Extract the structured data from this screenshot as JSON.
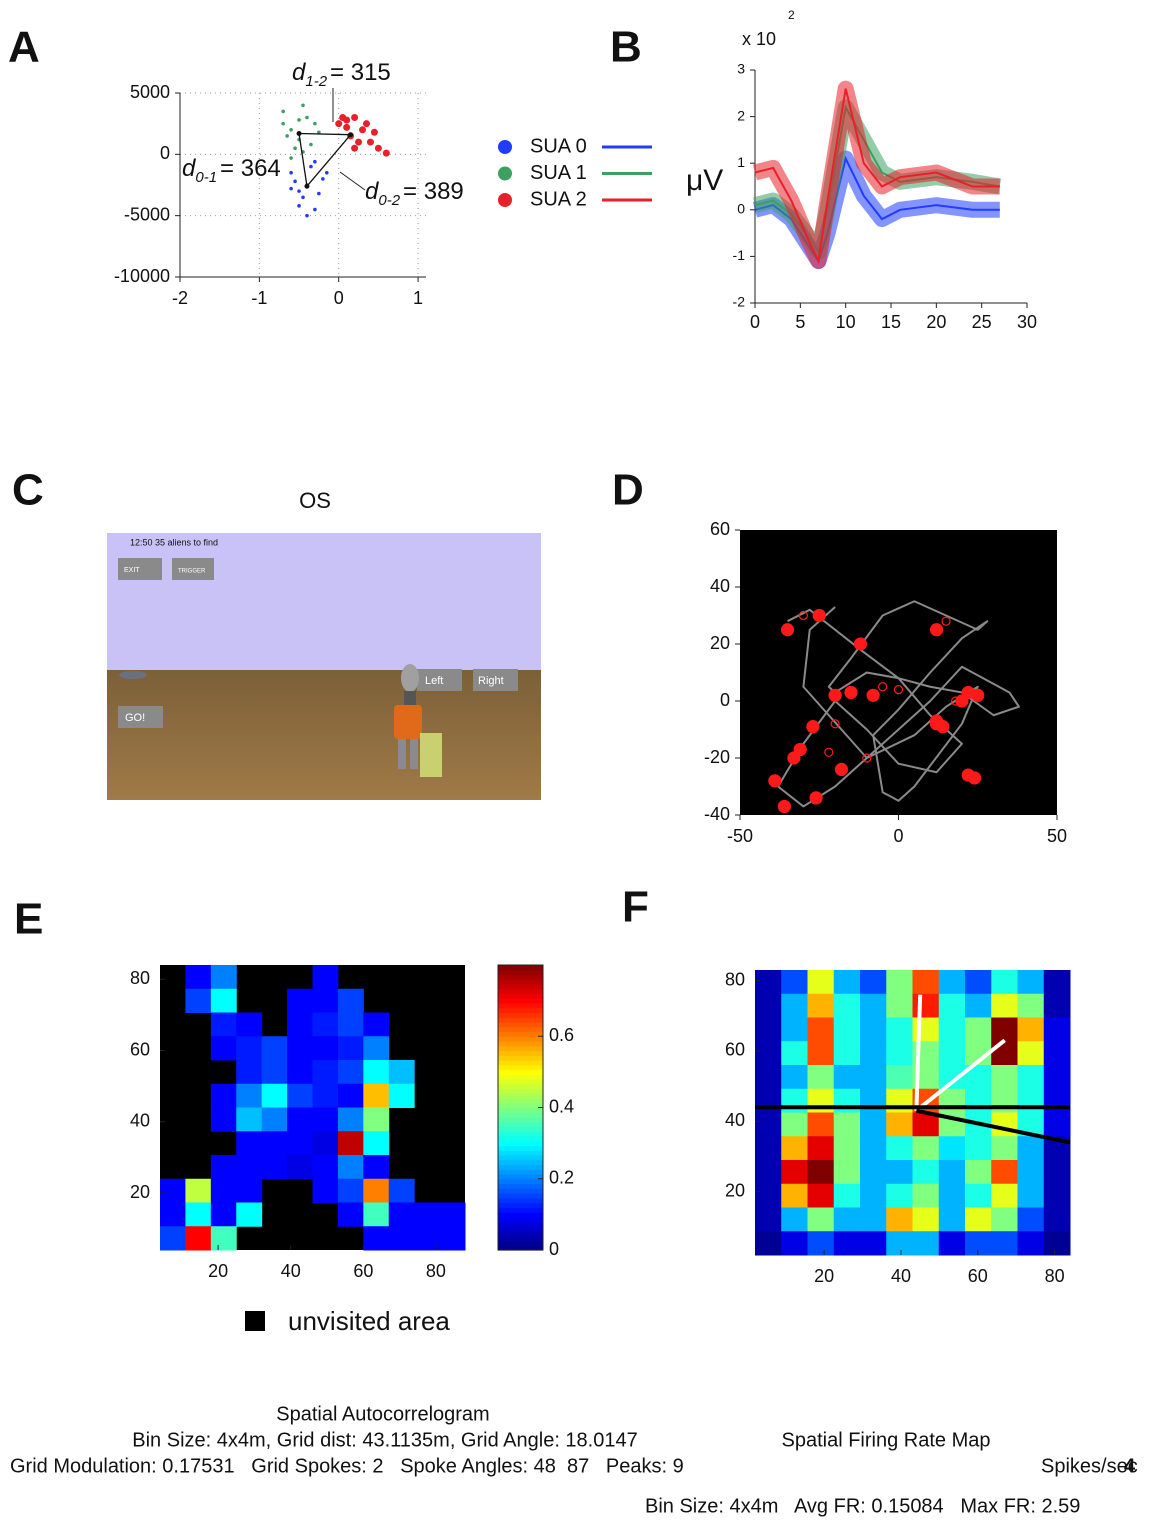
{
  "chart_data": [
    {
      "type": "scatter",
      "panel_label": "A",
      "xlim": [
        -2,
        1.1
      ],
      "ylim": [
        -10000,
        5000
      ],
      "xticks": [
        -2,
        -1,
        0,
        1
      ],
      "yticks": [
        -10000,
        -5000,
        0,
        5000
      ],
      "grid": true,
      "series": [
        {
          "name": "SUA 0",
          "color": "#1f3cff",
          "marker_size": 1.8,
          "centroid": [
            -0.4,
            -2600
          ],
          "x": [
            -0.6,
            -0.5,
            -0.4,
            -0.3,
            -0.2,
            -0.45,
            -0.35,
            -0.55,
            -0.25,
            -0.4,
            -0.5,
            -0.3,
            -0.6,
            -0.15
          ],
          "y": [
            -1500,
            -3000,
            -2500,
            -4500,
            -2000,
            -3500,
            -1000,
            -2200,
            -3200,
            -5000,
            -4200,
            -600,
            -2800,
            -1500
          ]
        },
        {
          "name": "SUA 1",
          "color": "#3ca060",
          "marker_size": 1.8,
          "centroid": [
            -0.5,
            1700
          ],
          "x": [
            -0.7,
            -0.6,
            -0.5,
            -0.45,
            -0.3,
            -0.55,
            -0.4,
            -0.65,
            -0.35,
            -0.5,
            -0.25,
            -0.6,
            -0.45,
            -0.7
          ],
          "y": [
            3500,
            2000,
            1200,
            4000,
            2500,
            500,
            3000,
            1500,
            800,
            2800,
            1800,
            -300,
            200,
            2500
          ]
        },
        {
          "name": "SUA 2",
          "color": "#e8202a",
          "marker_size": 3.5,
          "centroid": [
            0.15,
            1600
          ],
          "x": [
            0.0,
            0.1,
            0.2,
            0.3,
            0.15,
            0.25,
            0.35,
            0.05,
            0.45,
            0.5,
            0.2,
            0.1,
            0.4,
            0.6
          ],
          "y": [
            2500,
            2800,
            3000,
            2000,
            1500,
            1000,
            2500,
            3000,
            1800,
            500,
            500,
            2200,
            1000,
            100
          ]
        }
      ],
      "annotations": [
        {
          "symbol": "d",
          "subscript": "1-2",
          "label": "= 315"
        },
        {
          "symbol": "d",
          "subscript": "0-1",
          "label": "= 364"
        },
        {
          "symbol": "d",
          "subscript": "0-2",
          "label": "= 389"
        }
      ]
    },
    {
      "type": "line",
      "panel_label": "B",
      "exponent_label": "x 10",
      "exponent": "2",
      "y_label": "μV",
      "xlim": [
        0,
        30
      ],
      "ylim": [
        -2,
        3
      ],
      "xticks": [
        0,
        5,
        10,
        15,
        20,
        25,
        30
      ],
      "yticks": [
        -2,
        -1,
        0,
        1,
        2,
        3
      ],
      "x": [
        0,
        2,
        4,
        6,
        7,
        8,
        10,
        12,
        14,
        16,
        20,
        24,
        27
      ],
      "series": [
        {
          "color": "#1f3cff",
          "values": [
            0.0,
            0.1,
            -0.2,
            -0.8,
            -1.1,
            -0.5,
            1.1,
            0.3,
            -0.2,
            0.0,
            0.1,
            0.0,
            0.0
          ]
        },
        {
          "color": "#3ca060",
          "values": [
            0.1,
            0.2,
            -0.1,
            -0.6,
            -0.9,
            0.0,
            2.2,
            1.5,
            0.8,
            0.6,
            0.7,
            0.6,
            0.5
          ]
        },
        {
          "color": "#e8202a",
          "values": [
            0.8,
            0.9,
            0.2,
            -0.7,
            -1.1,
            0.2,
            2.6,
            1.0,
            0.5,
            0.7,
            0.8,
            0.5,
            0.5
          ]
        }
      ]
    },
    {
      "type": "trajectory",
      "panel_label": "D",
      "xlim": [
        -50,
        50
      ],
      "ylim": [
        -40,
        60
      ],
      "xticks": [
        -50,
        0,
        50
      ],
      "yticks": [
        -40,
        -20,
        0,
        20,
        40,
        60
      ],
      "background": "#000000",
      "path": {
        "color": "#8a8a8a",
        "x": [
          -35,
          -28,
          -20,
          -12,
          0,
          10,
          20,
          12,
          0,
          -10,
          -20,
          -30,
          -38,
          -30,
          -20,
          -10,
          0,
          10,
          20,
          35,
          38,
          30,
          20,
          10,
          0,
          -10,
          -20,
          -22,
          -15,
          -5,
          5,
          15,
          25,
          28,
          20,
          10,
          0,
          -8,
          -5,
          0,
          5,
          20,
          25,
          15,
          5,
          -10,
          -22,
          -30,
          -28,
          -20
        ],
        "y": [
          28,
          32,
          25,
          18,
          8,
          -5,
          -15,
          -25,
          -22,
          -10,
          0,
          -15,
          -30,
          -37,
          -30,
          -20,
          -10,
          0,
          12,
          3,
          -2,
          -5,
          3,
          5,
          8,
          10,
          3,
          5,
          15,
          30,
          35,
          30,
          25,
          28,
          22,
          10,
          -3,
          -12,
          -32,
          -35,
          -30,
          -8,
          5,
          -2,
          -12,
          -20,
          -5,
          5,
          25,
          33
        ]
      },
      "spikes": [
        {
          "color": "#ff1a1a",
          "filled": true,
          "x": [
            -35,
            -25,
            -12,
            -31,
            -33,
            -36,
            -39,
            -26,
            -18,
            -20,
            -15,
            -8,
            12,
            12,
            20,
            22,
            25,
            12,
            14,
            22,
            24,
            -27
          ],
          "y": [
            25,
            30,
            20,
            -17,
            -20,
            -37,
            -28,
            -34,
            -24,
            2,
            3,
            2,
            25,
            -7,
            0,
            3,
            2,
            -8,
            -9,
            -26,
            -27,
            -9
          ]
        },
        {
          "color": "#ff1a1a",
          "filled": false,
          "x": [
            -30,
            -5,
            15,
            -20,
            0,
            -10,
            18,
            -22
          ],
          "y": [
            30,
            5,
            28,
            -8,
            4,
            -20,
            0,
            -18
          ]
        }
      ]
    },
    {
      "type": "heatmap",
      "panel_label": "E",
      "colormap": "jet",
      "missing_color": "#000000",
      "missing_label": "unvisited area",
      "xlim": [
        4,
        88
      ],
      "ylim": [
        4,
        84
      ],
      "xticks": [
        20,
        40,
        60,
        80
      ],
      "yticks": [
        20,
        40,
        60,
        80
      ],
      "clim": [
        0,
        0.8
      ],
      "colorbar_ticks": [
        0,
        0.2,
        0.4,
        0.6
      ],
      "values": [
        [
          null,
          0.1,
          0.2,
          null,
          null,
          null,
          0.1,
          null,
          null,
          null,
          null,
          null
        ],
        [
          null,
          0.15,
          0.3,
          null,
          null,
          0.1,
          0.1,
          0.15,
          null,
          null,
          null,
          null
        ],
        [
          null,
          null,
          0.12,
          0.1,
          null,
          0.1,
          0.12,
          0.15,
          0.1,
          null,
          null,
          null
        ],
        [
          null,
          null,
          0.1,
          0.12,
          0.15,
          0.1,
          0.1,
          0.12,
          0.2,
          null,
          null,
          null
        ],
        [
          null,
          null,
          null,
          0.12,
          0.15,
          0.1,
          0.12,
          0.15,
          0.3,
          0.25,
          null,
          null
        ],
        [
          null,
          null,
          0.1,
          0.2,
          0.3,
          0.15,
          0.12,
          0.1,
          0.55,
          0.3,
          null,
          null
        ],
        [
          null,
          null,
          0.1,
          0.25,
          0.2,
          0.1,
          0.1,
          0.2,
          0.4,
          null,
          null,
          null
        ],
        [
          null,
          null,
          null,
          0.1,
          0.1,
          0.1,
          0.08,
          0.75,
          0.3,
          null,
          null,
          null
        ],
        [
          null,
          null,
          0.1,
          0.1,
          0.1,
          0.08,
          0.1,
          0.2,
          0.1,
          null,
          null,
          null
        ],
        [
          0.1,
          0.45,
          0.1,
          0.1,
          null,
          null,
          0.1,
          0.15,
          0.6,
          0.15,
          null,
          null
        ],
        [
          0.1,
          0.3,
          0.1,
          0.3,
          null,
          null,
          null,
          0.1,
          0.35,
          0.1,
          0.1,
          0.1
        ],
        [
          0.15,
          0.7,
          0.35,
          null,
          null,
          null,
          null,
          null,
          0.1,
          0.1,
          0.1,
          0.1
        ]
      ]
    },
    {
      "type": "heatmap",
      "panel_label": "F",
      "colormap": "jet",
      "xlim": [
        2,
        84
      ],
      "ylim": [
        2,
        83
      ],
      "xticks": [
        20,
        40,
        60,
        80
      ],
      "yticks": [
        20,
        40,
        60,
        80
      ],
      "clim": [
        0,
        1
      ],
      "values": [
        [
          0.05,
          0.2,
          0.6,
          0.3,
          0.2,
          0.5,
          0.8,
          0.3,
          0.2,
          0.4,
          0.3,
          0.05
        ],
        [
          0.05,
          0.3,
          0.7,
          0.4,
          0.3,
          0.5,
          0.85,
          0.4,
          0.3,
          0.6,
          0.5,
          0.05
        ],
        [
          0.05,
          0.3,
          0.8,
          0.4,
          0.3,
          0.4,
          0.6,
          0.4,
          0.5,
          1,
          0.7,
          0.1
        ],
        [
          0.05,
          0.4,
          0.8,
          0.4,
          0.3,
          0.4,
          0.5,
          0.4,
          0.5,
          1,
          0.6,
          0.1
        ],
        [
          0.05,
          0.3,
          0.5,
          0.3,
          0.3,
          0.45,
          0.5,
          0.4,
          0.4,
          0.5,
          0.4,
          0.1
        ],
        [
          0.05,
          0.4,
          0.6,
          0.4,
          0.3,
          0.6,
          0.8,
          0.5,
          0.4,
          0.5,
          0.4,
          0.1
        ],
        [
          0.05,
          0.5,
          0.8,
          0.5,
          0.3,
          0.7,
          0.9,
          0.5,
          0.4,
          0.6,
          0.4,
          0.1
        ],
        [
          0.05,
          0.7,
          0.9,
          0.5,
          0.3,
          0.4,
          0.5,
          0.35,
          0.4,
          0.5,
          0.3,
          0.05
        ],
        [
          0.05,
          0.9,
          1,
          0.5,
          0.3,
          0.3,
          0.4,
          0.3,
          0.5,
          0.8,
          0.3,
          0.05
        ],
        [
          0.05,
          0.7,
          0.9,
          0.4,
          0.3,
          0.4,
          0.5,
          0.3,
          0.4,
          0.6,
          0.3,
          0.05
        ],
        [
          0.05,
          0.3,
          0.5,
          0.3,
          0.3,
          0.7,
          0.6,
          0.3,
          0.6,
          0.5,
          0.2,
          0.05
        ],
        [
          0.02,
          0.1,
          0.2,
          0.1,
          0.1,
          0.3,
          0.3,
          0.1,
          0.2,
          0.2,
          0.1,
          0.02
        ]
      ],
      "spokes": [
        {
          "color": "#ffffff",
          "x": [
            44,
            45
          ],
          "y": [
            43,
            76
          ]
        },
        {
          "color": "#ffffff",
          "x": [
            44,
            67
          ],
          "y": [
            43,
            63
          ]
        },
        {
          "color": "#000000",
          "x": [
            2,
            84
          ],
          "y": [
            44,
            44
          ]
        },
        {
          "color": "#000000",
          "x": [
            44,
            84
          ],
          "y": [
            43,
            34
          ]
        }
      ]
    }
  ],
  "game_screenshot": {
    "panel_label": "C",
    "title": "OS",
    "status": "12:50 35 aliens to find",
    "buttons": [
      "EXIT",
      "TRIGGER",
      "Left",
      "Right",
      "GO!"
    ]
  },
  "footer": {
    "autocorrelogram_title": "Spatial Autocorrelogram",
    "autocorrelogram_stats": "Bin Size: 4x4m, Grid dist: 43.1135m, Grid Angle: 18.0147",
    "grid_stats": "Grid Modulation: 0.17531   Grid Spokes: 2   Spoke Angles: 48  87   Peaks: 9",
    "rate_map_title": "Spatial Firing Rate Map",
    "colorbar_label": "Spikes/sec",
    "colorbar_max": 4,
    "rate_map_stats": "Bin Size: 4x4m   Avg FR: 0.15084   Max FR: 2.59"
  }
}
